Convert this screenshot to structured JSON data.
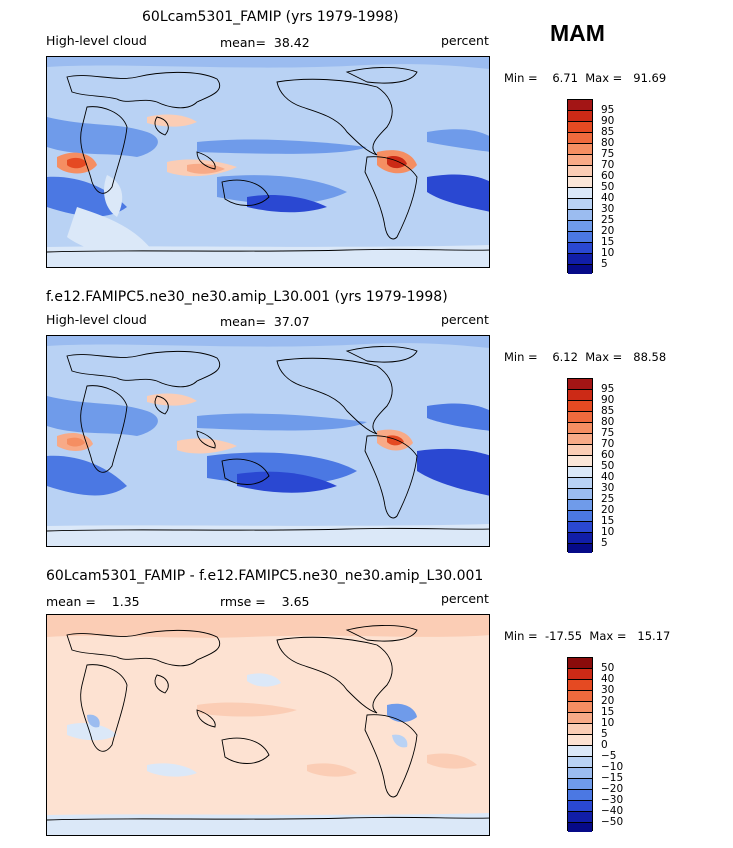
{
  "season": "MAM",
  "panels": [
    {
      "title": "60Lcam5301_FAMIP (yrs 1979-1998)",
      "left_label": "High-level cloud",
      "mean_label": "mean=  38.42",
      "units": "percent",
      "min_max": "Min =    6.71  Max =   91.69"
    },
    {
      "title": "f.e12.FAMIPC5.ne30_ne30.amip_L30.001 (yrs 1979-1998)",
      "left_label": "High-level cloud",
      "mean_label": "mean=  37.07",
      "units": "percent",
      "min_max": "Min =    6.12  Max =   88.58"
    },
    {
      "title": "60Lcam5301_FAMIP - f.e12.FAMIPC5.ne30_ne30.amip_L30.001",
      "left_label": "mean =    1.35",
      "mean_label": "rmse =    3.65",
      "units": "percent",
      "min_max": "Min =  -17.55  Max =   15.17"
    }
  ],
  "colorbars": {
    "absolute": {
      "levels": [
        "95",
        "90",
        "85",
        "80",
        "75",
        "70",
        "60",
        "50",
        "40",
        "30",
        "25",
        "20",
        "15",
        "10",
        "5"
      ],
      "colors": [
        "#a31515",
        "#cc2a16",
        "#e54a22",
        "#ef6a3d",
        "#f58e62",
        "#f8aa87",
        "#fbcdb5",
        "#fbe6d8",
        "#dbe8f8",
        "#b9d2f4",
        "#9bbcf0",
        "#6f9bea",
        "#4b78e3",
        "#2a48d2",
        "#111ea8",
        "#060a88"
      ]
    },
    "difference": {
      "levels": [
        "50",
        "40",
        "30",
        "20",
        "15",
        "10",
        "5",
        "0",
        "−5",
        "−10",
        "−15",
        "−20",
        "−30",
        "−40",
        "−50"
      ],
      "colors": [
        "#8a0b0b",
        "#cc2a16",
        "#e54a22",
        "#ef6a3d",
        "#f58e62",
        "#f8aa87",
        "#fbcdb5",
        "#fde2d2",
        "#dbe8f8",
        "#b9d2f4",
        "#9bbcf0",
        "#6f9bea",
        "#4b78e3",
        "#2a48d2",
        "#111ea8",
        "#060a88"
      ]
    }
  },
  "chart_data": [
    {
      "type": "heatmap",
      "title": "60Lcam5301_FAMIP (yrs 1979-1998)",
      "variable": "High-level cloud",
      "units": "percent",
      "mean": 38.42,
      "min": 6.71,
      "max": 91.69,
      "contour_levels": [
        5,
        10,
        15,
        20,
        25,
        30,
        40,
        50,
        60,
        70,
        75,
        80,
        85,
        90,
        95
      ]
    },
    {
      "type": "heatmap",
      "title": "f.e12.FAMIPC5.ne30_ne30.amip_L30.001 (yrs 1979-1998)",
      "variable": "High-level cloud",
      "units": "percent",
      "mean": 37.07,
      "min": 6.12,
      "max": 88.58,
      "contour_levels": [
        5,
        10,
        15,
        20,
        25,
        30,
        40,
        50,
        60,
        70,
        75,
        80,
        85,
        90,
        95
      ]
    },
    {
      "type": "heatmap",
      "title": "60Lcam5301_FAMIP - f.e12.FAMIPC5.ne30_ne30.amip_L30.001",
      "units": "percent",
      "mean": 1.35,
      "rmse": 3.65,
      "min": -17.55,
      "max": 15.17,
      "contour_levels": [
        -50,
        -40,
        -30,
        -20,
        -15,
        -10,
        -5,
        0,
        5,
        10,
        15,
        20,
        30,
        40,
        50
      ]
    }
  ]
}
